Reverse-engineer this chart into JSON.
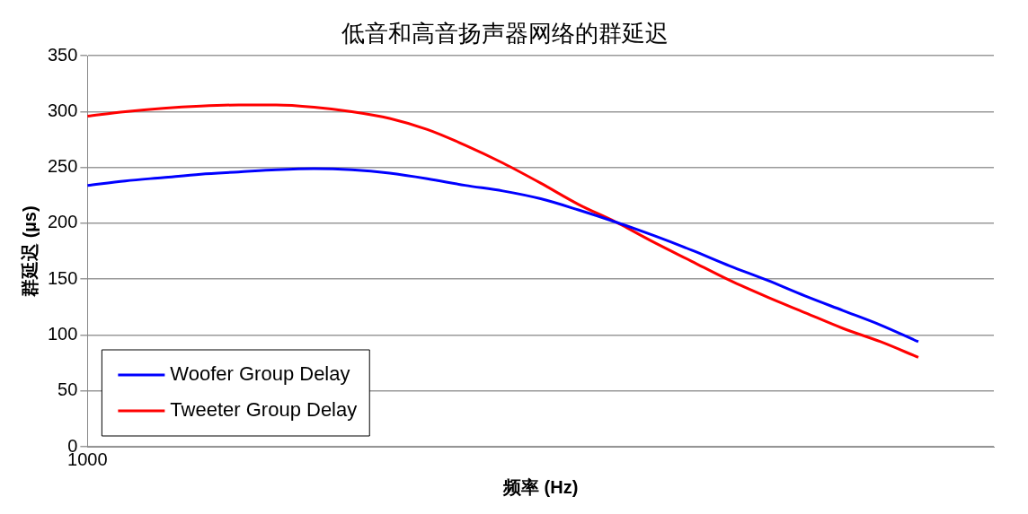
{
  "chart_data": {
    "type": "line",
    "title": "低音和高音扬声器网络的群延迟",
    "xlabel": "频率 (Hz)",
    "ylabel": "群延迟 (µs)",
    "categories": [
      "1000",
      null,
      null,
      null,
      null,
      null,
      null,
      null,
      null,
      null,
      null,
      null,
      null,
      null,
      null,
      null,
      null,
      null,
      null,
      null,
      null,
      null,
      null,
      null,
      null
    ],
    "ylim": [
      0,
      350
    ],
    "yticks": [
      0,
      50,
      100,
      150,
      200,
      250,
      300,
      350
    ],
    "grid": "y",
    "legend": "bottom left",
    "marker": "none",
    "line_style": "solid",
    "series": [
      {
        "name": "Woofer Group Delay",
        "color": "#0000ff",
        "values": [
          234,
          238,
          241,
          244,
          246,
          248,
          249,
          248,
          245,
          240,
          234,
          229,
          222,
          212,
          201,
          189,
          176,
          162,
          149,
          135,
          122,
          109,
          94,
          null,
          null
        ]
      },
      {
        "name": "Tweeter Group Delay",
        "color": "#ff0000",
        "values": [
          296,
          300,
          303,
          305,
          306,
          306,
          304,
          300,
          294,
          284,
          270,
          254,
          236,
          217,
          201,
          183,
          166,
          149,
          134,
          120,
          106,
          94,
          80,
          null,
          null
        ]
      }
    ]
  }
}
